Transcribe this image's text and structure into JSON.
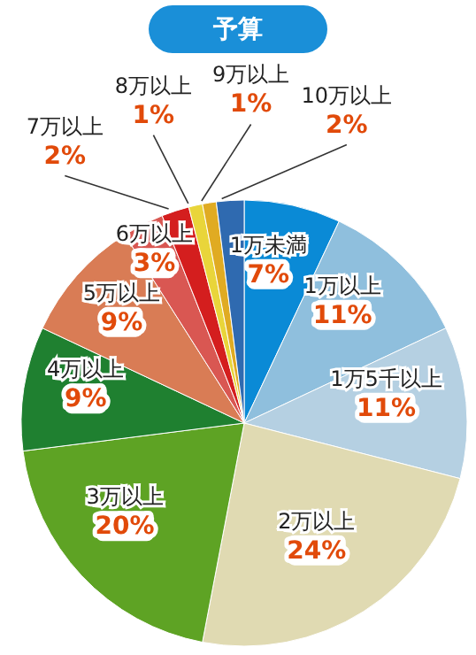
{
  "chart_data": {
    "type": "pie",
    "title": "予算",
    "categories": [
      "1万未満",
      "1万以上",
      "1万5千以上",
      "2万以上",
      "3万以上",
      "4万以上",
      "5万以上",
      "6万以上",
      "7万以上",
      "8万以上",
      "9万以上",
      "10万以上"
    ],
    "values": [
      7,
      11,
      11,
      24,
      20,
      9,
      9,
      3,
      2,
      1,
      1,
      2
    ],
    "colors": [
      "#0a8ad6",
      "#8fbfdd",
      "#b5d0e2",
      "#e0dab2",
      "#5ea324",
      "#1f8030",
      "#d97c55",
      "#d95752",
      "#d41e1e",
      "#e9d53a",
      "#e0ab22",
      "#2f6ab0"
    ],
    "value_labels": [
      "7%",
      "11%",
      "11%",
      "24%",
      "20%",
      "9%",
      "9%",
      "3%",
      "2%",
      "1%",
      "1%",
      "2%"
    ]
  }
}
